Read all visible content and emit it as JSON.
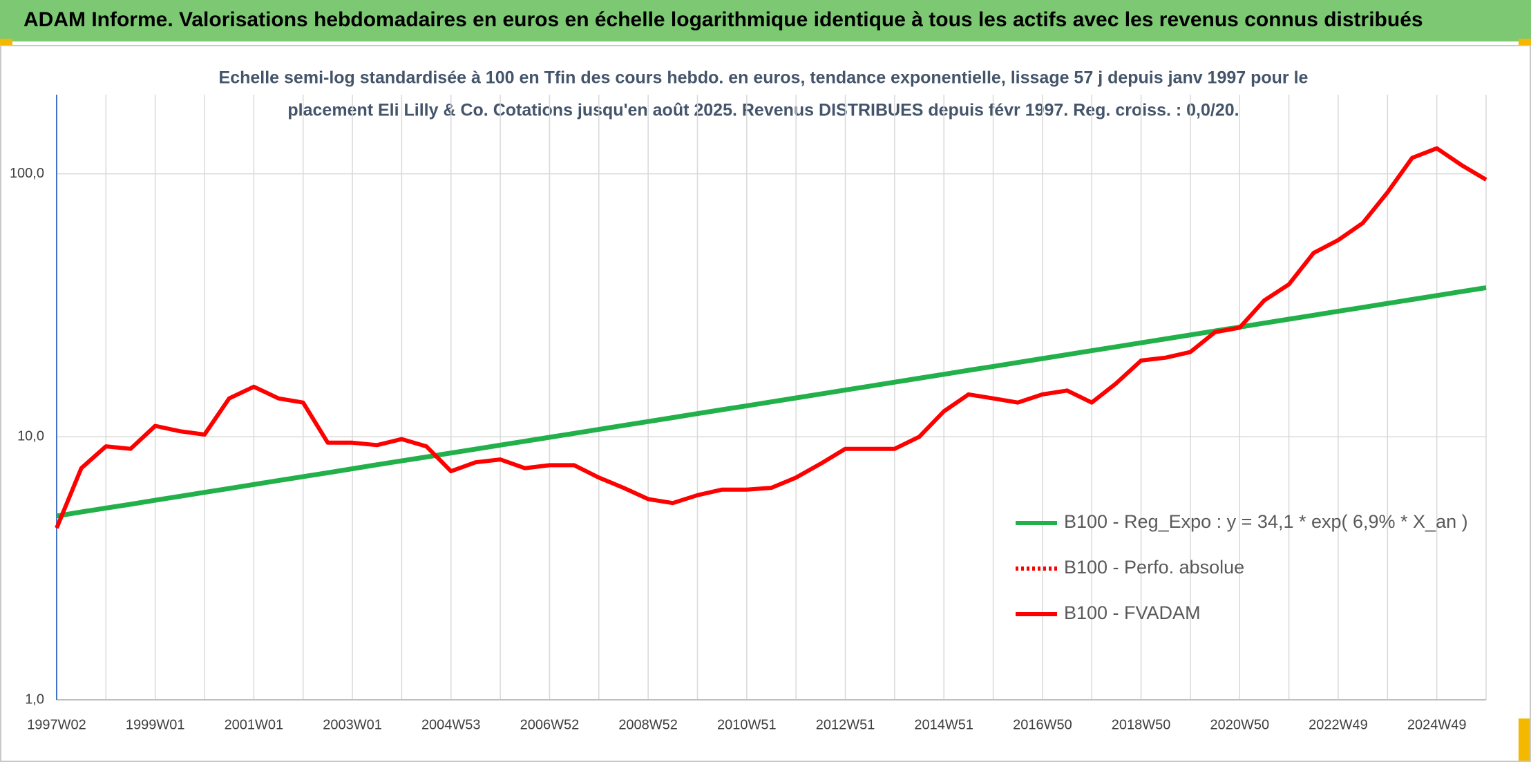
{
  "chart_data": {
    "type": "line",
    "title": "ADAM Informe. Valorisations hebdomadaires en euros en échelle logarithmique identique à tous les actifs avec les revenus connus distribués",
    "subtitle": [
      "Echelle semi-log standardisée à 100 en Tfin des cours hebdo. en euros, tendance exponentielle, lissage 57 j depuis janv 1997 pour le",
      "placement Eli Lilly & Co. Cotations jusqu'en août 2025. Revenus DISTRIBUES depuis févr 1997. Reg. croiss. : 0,0/20."
    ],
    "categories": [
      "1997W02",
      null,
      null,
      null,
      "1999W01",
      null,
      null,
      null,
      "2001W01",
      null,
      null,
      null,
      "2003W01",
      null,
      null,
      null,
      "2004W53",
      null,
      null,
      null,
      "2006W52",
      null,
      null,
      null,
      "2008W52",
      null,
      null,
      null,
      "2010W51",
      null,
      null,
      null,
      "2012W51",
      null,
      null,
      null,
      "2014W51",
      null,
      null,
      null,
      "2016W50",
      null,
      null,
      null,
      "2018W50",
      null,
      null,
      null,
      "2020W50",
      null,
      null,
      null,
      "2022W49",
      null,
      null,
      null,
      "2024W49",
      null,
      null
    ],
    "series": [
      {
        "name": "B100 - Reg_Expo : y = 34,1 * exp( 6,9% *  X_an )",
        "color": "#22b04a",
        "style": "solid",
        "values": [
          5.0,
          5.18,
          5.36,
          5.54,
          5.74,
          5.94,
          6.15,
          6.36,
          6.59,
          6.82,
          7.06,
          7.3,
          7.56,
          7.83,
          8.1,
          8.38,
          8.68,
          8.98,
          9.3,
          9.62,
          9.96,
          10.31,
          10.67,
          11.05,
          11.43,
          11.83,
          12.25,
          12.68,
          13.12,
          13.58,
          14.06,
          14.55,
          15.06,
          15.59,
          16.14,
          16.7,
          17.29,
          17.9,
          18.52,
          19.17,
          19.84,
          20.54,
          21.26,
          22.01,
          22.78,
          23.58,
          24.4,
          25.26,
          26.15,
          27.06,
          28.01,
          28.99,
          30.01,
          31.06,
          32.15,
          33.28,
          34.45,
          35.66,
          36.91
        ]
      },
      {
        "name": "B100 - Perfo. absolue",
        "color": "#ff0000",
        "style": "dotted",
        "values": [
          null,
          null,
          null,
          null,
          null,
          null,
          null,
          null,
          null,
          null,
          null,
          null,
          null,
          null,
          null,
          null,
          null,
          null,
          null,
          null,
          null,
          null,
          null,
          null,
          null,
          null,
          null,
          null,
          null,
          null,
          null,
          null,
          null,
          null,
          null,
          null,
          null,
          null,
          null,
          null,
          null,
          null,
          null,
          null,
          null,
          null,
          null,
          null,
          null,
          null,
          null,
          null,
          null,
          null,
          null,
          null,
          null,
          null,
          null
        ]
      },
      {
        "name": "B100 - FVADAM",
        "color": "#ff0000",
        "style": "solid",
        "values": [
          4.5,
          7.6,
          9.2,
          9.0,
          11,
          10.5,
          10.2,
          14,
          15.5,
          14,
          13.5,
          9.5,
          9.5,
          9.3,
          9.8,
          9.2,
          7.4,
          8.0,
          8.2,
          7.6,
          7.8,
          7.8,
          7.0,
          6.4,
          5.8,
          5.6,
          6.0,
          6.3,
          6.3,
          6.4,
          7.0,
          7.9,
          9.0,
          9.0,
          9.0,
          10.0,
          12.5,
          14.5,
          14.0,
          13.5,
          14.5,
          15,
          13.5,
          16,
          19.5,
          20,
          21,
          25,
          26,
          33,
          38,
          50,
          56,
          65,
          85,
          115,
          125,
          108,
          95
        ]
      }
    ],
    "ylim": [
      1,
      200
    ],
    "log_y": true,
    "yticks": [
      {
        "value": 1,
        "label": "1,0"
      },
      {
        "value": 10,
        "label": "10,0"
      },
      {
        "value": 100,
        "label": "100,0"
      }
    ],
    "grid": true
  }
}
